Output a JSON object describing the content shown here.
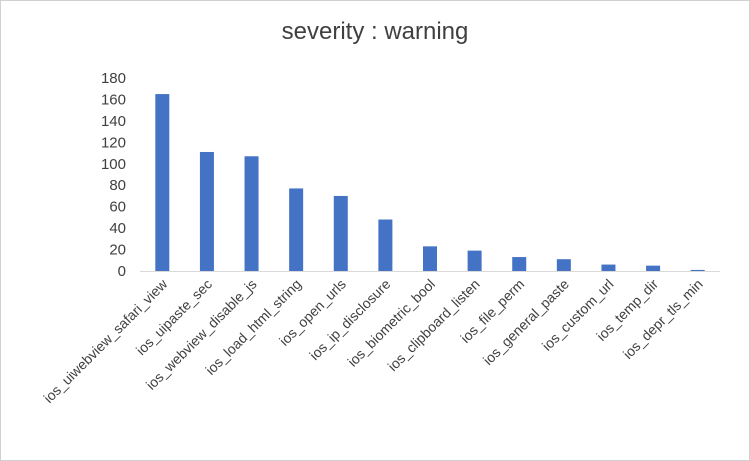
{
  "chart_data": {
    "type": "bar",
    "title": "severity : warning",
    "xlabel": "",
    "ylabel": "",
    "ylim": [
      0,
      180
    ],
    "yticks": [
      0,
      20,
      40,
      60,
      80,
      100,
      120,
      140,
      160,
      180
    ],
    "grid": false,
    "legend": "none",
    "bar_color": "#4472C4",
    "categories": [
      "ios_uiwebview_safari_view",
      "ios_uipaste_sec",
      "ios_webview_disable_js",
      "ios_load_html_string",
      "ios_open_urls",
      "ios_ip_disclosure",
      "ios_biometric_bool",
      "ios_clipboard_listen",
      "ios_file_perm",
      "ios_general_paste",
      "ios_custom_url",
      "ios_temp_dir",
      "ios_depr_tls_min"
    ],
    "values": [
      165,
      111,
      107,
      77,
      70,
      48,
      23,
      19,
      13,
      11,
      6,
      5,
      1
    ]
  }
}
